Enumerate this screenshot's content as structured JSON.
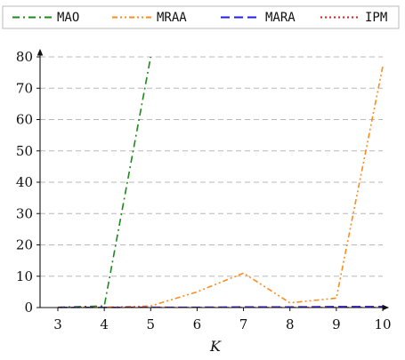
{
  "chart_data": {
    "type": "line",
    "title": "",
    "xlabel": "K",
    "ylabel": "",
    "x": [
      3,
      4,
      5,
      6,
      7,
      8,
      9,
      10
    ],
    "xlim": [
      3,
      10
    ],
    "ylim": [
      0,
      80
    ],
    "x_ticks": [
      "3",
      "4",
      "5",
      "6",
      "7",
      "8",
      "9",
      "10"
    ],
    "y_ticks": [
      "0",
      "10",
      "20",
      "30",
      "40",
      "50",
      "60",
      "70",
      "80"
    ],
    "y_tick_values": [
      0,
      10,
      20,
      30,
      40,
      50,
      60,
      70,
      80
    ],
    "grid": "horizontal dashed",
    "legend_position": "top",
    "series": [
      {
        "name": "MAO",
        "color": "#1a8a1a",
        "dash": "dashdot",
        "points": [
          [
            3,
            0.1
          ],
          [
            4,
            0.5
          ],
          [
            5,
            80
          ]
        ]
      },
      {
        "name": "MRAA",
        "color": "#ff8c1a",
        "dash": "dashdotdot",
        "points": [
          [
            3,
            0.05
          ],
          [
            4,
            0.1
          ],
          [
            5,
            0.5
          ],
          [
            6,
            5
          ],
          [
            7,
            11
          ],
          [
            8,
            1.5
          ],
          [
            9,
            3
          ],
          [
            10,
            77
          ]
        ]
      },
      {
        "name": "MARA",
        "color": "#1f1fe6",
        "dash": "dashed",
        "points": [
          [
            3,
            0.05
          ],
          [
            4,
            0.05
          ],
          [
            5,
            0.1
          ],
          [
            6,
            0.1
          ],
          [
            7,
            0.2
          ],
          [
            8,
            0.2
          ],
          [
            9,
            0.3
          ],
          [
            10,
            0.3
          ]
        ]
      },
      {
        "name": "IPM",
        "color": "#e61a1a",
        "dash": "dotted",
        "points": [
          [
            3,
            0.05
          ],
          [
            4,
            0.05
          ],
          [
            5,
            0.05
          ],
          [
            6,
            0.05
          ],
          [
            7,
            0.05
          ],
          [
            8,
            0.05
          ],
          [
            9,
            0.05
          ],
          [
            10,
            0.05
          ]
        ]
      }
    ]
  }
}
